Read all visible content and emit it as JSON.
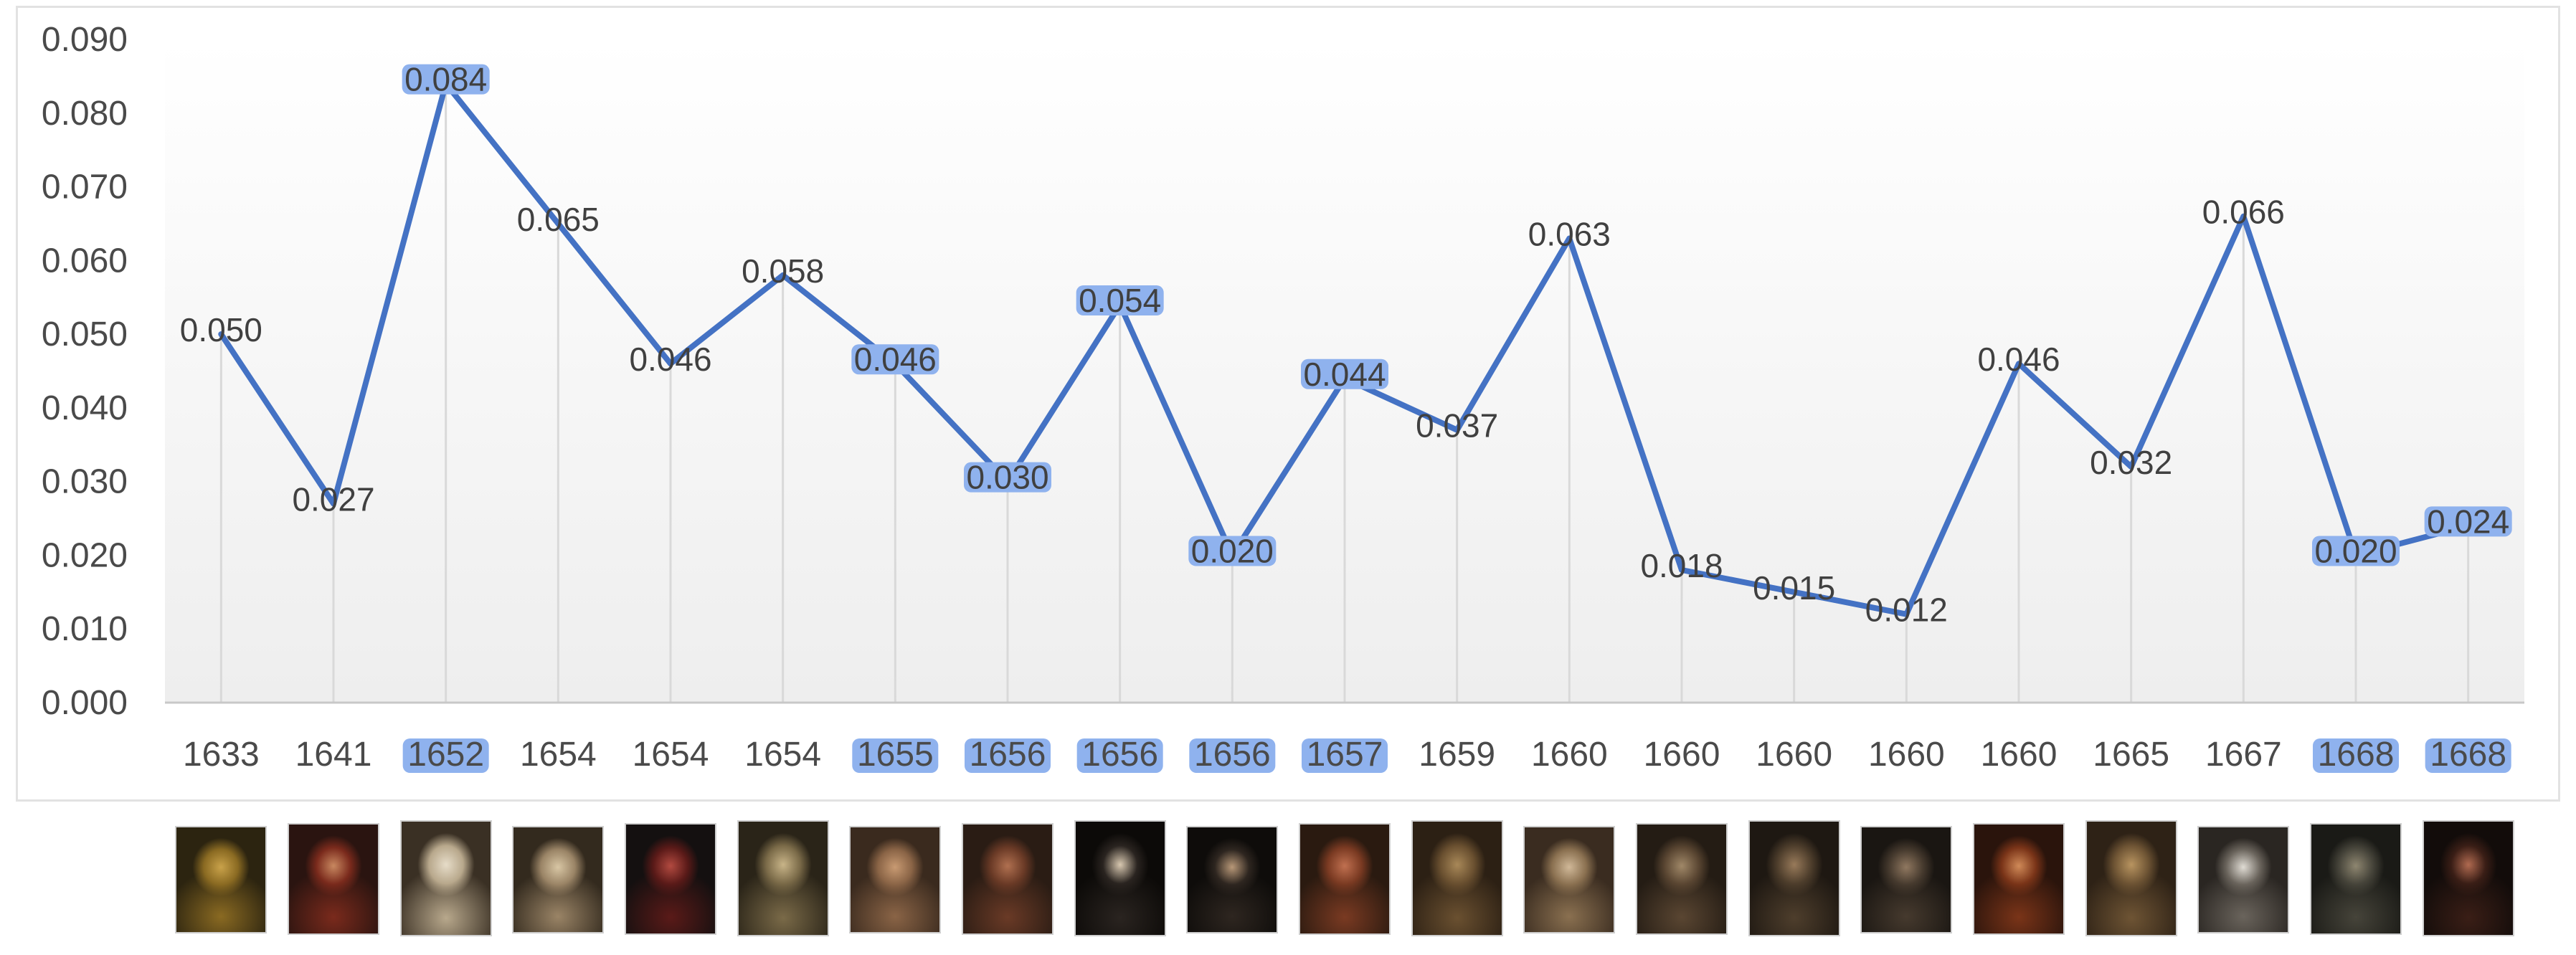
{
  "chart_data": {
    "type": "line",
    "categories": [
      "1633",
      "1641",
      "1652",
      "1654",
      "1654",
      "1654",
      "1655",
      "1656",
      "1656",
      "1656",
      "1657",
      "1659",
      "1660",
      "1660",
      "1660",
      "1660",
      "1660",
      "1665",
      "1667",
      "1668",
      "1668"
    ],
    "values": [
      0.05,
      0.027,
      0.084,
      0.065,
      0.046,
      0.058,
      0.046,
      0.03,
      0.054,
      0.02,
      0.044,
      0.037,
      0.063,
      0.018,
      0.015,
      0.012,
      0.046,
      0.032,
      0.066,
      0.02,
      0.024
    ],
    "data_labels": [
      "0.050",
      "0.027",
      "0.084",
      "0.065",
      "0.046",
      "0.058",
      "0.046",
      "0.030",
      "0.054",
      "0.020",
      "0.044",
      "0.037",
      "0.063",
      "0.018",
      "0.015",
      "0.012",
      "0.046",
      "0.032",
      "0.066",
      "0.020",
      "0.024"
    ],
    "highlighted": [
      false,
      false,
      true,
      false,
      false,
      false,
      true,
      true,
      true,
      true,
      true,
      false,
      false,
      false,
      false,
      false,
      false,
      false,
      false,
      true,
      true
    ],
    "ylim": [
      0,
      0.09
    ],
    "yticks": [
      "0.000",
      "0.010",
      "0.020",
      "0.030",
      "0.040",
      "0.050",
      "0.060",
      "0.070",
      "0.080",
      "0.090"
    ],
    "title": "",
    "xlabel": "",
    "ylabel": "",
    "grid": "vertical drop lines",
    "line_color": "#4472c4",
    "highlight_color": "#8fb2ee"
  },
  "thumbnails": [
    {
      "name": "portrait-thumbnail",
      "colors": [
        "#2c2410",
        "#8a6a22",
        "#c9a24a"
      ]
    },
    {
      "name": "portrait-thumbnail",
      "colors": [
        "#2a1410",
        "#7a2a1c",
        "#c88860"
      ]
    },
    {
      "name": "portrait-thumbnail",
      "colors": [
        "#3a3024",
        "#b8a88c",
        "#e6dcc8"
      ]
    },
    {
      "name": "portrait-thumbnail",
      "colors": [
        "#332a1e",
        "#9a8466",
        "#d8c6a4"
      ]
    },
    {
      "name": "portrait-thumbnail",
      "colors": [
        "#141010",
        "#5a1a18",
        "#b24a40"
      ]
    },
    {
      "name": "portrait-thumbnail",
      "colors": [
        "#2a2418",
        "#7a6a48",
        "#c8b488"
      ]
    },
    {
      "name": "portrait-thumbnail",
      "colors": [
        "#3a2a1e",
        "#8a6446",
        "#c89a72"
      ]
    },
    {
      "name": "portrait-thumbnail",
      "colors": [
        "#2a1c14",
        "#6a3a26",
        "#b07050"
      ]
    },
    {
      "name": "portrait-thumbnail",
      "colors": [
        "#0c0a08",
        "#2a2420",
        "#d8c8b0"
      ]
    },
    {
      "name": "portrait-thumbnail",
      "colors": [
        "#0e0c0a",
        "#2e2620",
        "#b89878"
      ]
    },
    {
      "name": "portrait-thumbnail",
      "colors": [
        "#2a1a10",
        "#7a3a22",
        "#c07050"
      ]
    },
    {
      "name": "portrait-thumbnail",
      "colors": [
        "#2c2014",
        "#6a5030",
        "#a88858"
      ]
    },
    {
      "name": "portrait-thumbnail",
      "colors": [
        "#3a2c20",
        "#8a7050",
        "#d0b898"
      ]
    },
    {
      "name": "portrait-thumbnail",
      "colors": [
        "#241c14",
        "#5a4632",
        "#a08868"
      ]
    },
    {
      "name": "portrait-thumbnail",
      "colors": [
        "#1e1812",
        "#4e3e2c",
        "#987a5a"
      ]
    },
    {
      "name": "portrait-thumbnail",
      "colors": [
        "#1a1612",
        "#463a2e",
        "#907860"
      ]
    },
    {
      "name": "portrait-thumbnail",
      "colors": [
        "#2a140c",
        "#7a3418",
        "#d08a58"
      ]
    },
    {
      "name": "portrait-thumbnail",
      "colors": [
        "#2e2216",
        "#6e5434",
        "#b89460"
      ]
    },
    {
      "name": "portrait-thumbnail",
      "colors": [
        "#2a2622",
        "#6a645c",
        "#e0dcd4"
      ]
    },
    {
      "name": "portrait-thumbnail",
      "colors": [
        "#1a1a16",
        "#46443a",
        "#8e8670"
      ]
    },
    {
      "name": "portrait-thumbnail",
      "colors": [
        "#120c0a",
        "#3a1e16",
        "#b06a50"
      ]
    }
  ]
}
